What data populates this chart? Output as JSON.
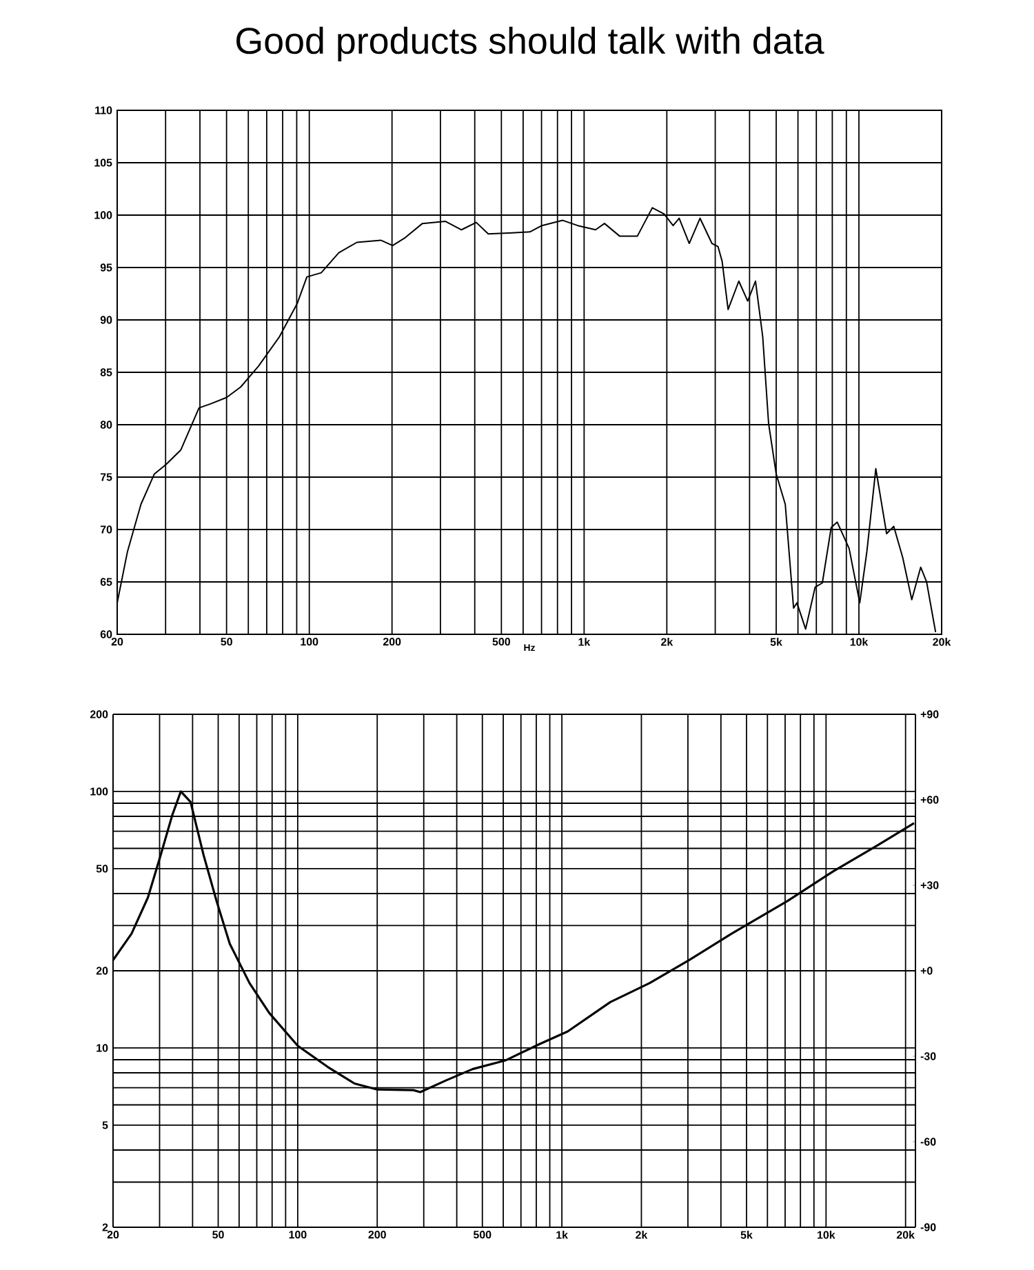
{
  "chart_data": [
    {
      "type": "line",
      "title": "Good products should talk with data",
      "xlabel": "Hz",
      "log": "x",
      "grid": true,
      "xlim": [
        20,
        20000
      ],
      "ylim": [
        60,
        110
      ],
      "xticks": [
        20,
        {
          "value": 30,
          "label": null
        },
        {
          "value": 40,
          "label": null
        },
        50,
        {
          "value": 60,
          "label": null
        },
        {
          "value": 70,
          "label": null
        },
        {
          "value": 80,
          "label": null
        },
        {
          "value": 90,
          "label": null
        },
        100,
        200,
        {
          "value": 300,
          "label": null
        },
        {
          "value": 400,
          "label": null
        },
        500,
        {
          "value": 600,
          "label": null
        },
        {
          "value": 700,
          "label": null
        },
        {
          "value": 800,
          "label": null
        },
        {
          "value": 900,
          "label": null
        },
        {
          "value": 1000,
          "label": "1k"
        },
        {
          "value": 2000,
          "label": "2k"
        },
        {
          "value": 3000,
          "label": null
        },
        {
          "value": 4000,
          "label": null
        },
        {
          "value": 5000,
          "label": "5k"
        },
        {
          "value": 6000,
          "label": null
        },
        {
          "value": 7000,
          "label": null
        },
        {
          "value": 8000,
          "label": null
        },
        {
          "value": 9000,
          "label": null
        },
        {
          "value": 10000,
          "label": "10k"
        },
        {
          "value": 20000,
          "label": "20k"
        }
      ],
      "yticks": [
        60,
        65,
        70,
        75,
        80,
        85,
        90,
        95,
        100,
        105,
        110
      ],
      "series": [
        {
          "color": "#000000",
          "x": [
            20,
            21.8,
            24.4,
            27.3,
            30.1,
            34.1,
            39.7,
            43.8,
            50,
            56.3,
            65.4,
            77.9,
            90.5,
            98,
            110.5,
            128,
            149,
            182,
            201,
            222,
            258,
            313,
            358,
            405,
            448,
            547,
            635,
            702,
            836,
            948,
            1101,
            1186,
            1346,
            1563,
            1771,
            1955,
            2108,
            2218,
            2413,
            2641,
            2918,
            3070,
            3178,
            3342,
            3656,
            3938,
            4204,
            4466,
            4692,
            5000,
            5395,
            5783,
            5950,
            6398,
            6930,
            7360,
            7930,
            8338,
            9210,
            10070,
            10690,
            11520,
            12610,
            13390,
            14440,
            15570,
            16780,
            17630,
            19010
          ],
          "values": [
            63.0,
            67.9,
            72.4,
            75.3,
            76.2,
            77.6,
            81.6,
            82.0,
            82.6,
            83.6,
            85.6,
            88.4,
            91.6,
            94.1,
            94.5,
            96.4,
            97.4,
            97.6,
            97.1,
            97.8,
            99.2,
            99.4,
            98.6,
            99.3,
            98.2,
            98.3,
            98.4,
            99.0,
            99.5,
            99.0,
            98.6,
            99.2,
            98.0,
            98.0,
            100.7,
            100.1,
            99.0,
            99.7,
            97.3,
            99.7,
            97.3,
            97.0,
            95.6,
            91.0,
            93.7,
            91.8,
            93.7,
            88.4,
            80.1,
            75.3,
            72.4,
            62.5,
            63.0,
            60.5,
            64.5,
            64.9,
            70.2,
            70.7,
            68.2,
            63.0,
            67.9,
            75.8,
            69.6,
            70.3,
            67.3,
            63.3,
            66.4,
            65.0,
            60.2
          ]
        }
      ]
    },
    {
      "type": "line",
      "log": "xy",
      "grid": true,
      "xlim": [
        20,
        21800
      ],
      "ylim": [
        2,
        200
      ],
      "y2lim": [
        -90,
        90
      ],
      "xticks": [
        20,
        {
          "value": 30,
          "label": null
        },
        {
          "value": 40,
          "label": null
        },
        50,
        {
          "value": 60,
          "label": null
        },
        {
          "value": 70,
          "label": null
        },
        {
          "value": 80,
          "label": null
        },
        {
          "value": 90,
          "label": null
        },
        100,
        200,
        {
          "value": 300,
          "label": null
        },
        {
          "value": 400,
          "label": null
        },
        500,
        {
          "value": 600,
          "label": null
        },
        {
          "value": 700,
          "label": null
        },
        {
          "value": 800,
          "label": null
        },
        {
          "value": 900,
          "label": null
        },
        {
          "value": 1000,
          "label": "1k"
        },
        {
          "value": 2000,
          "label": "2k"
        },
        {
          "value": 3000,
          "label": null
        },
        {
          "value": 4000,
          "label": null
        },
        {
          "value": 5000,
          "label": "5k"
        },
        {
          "value": 6000,
          "label": null
        },
        {
          "value": 7000,
          "label": null
        },
        {
          "value": 8000,
          "label": null
        },
        {
          "value": 9000,
          "label": null
        },
        {
          "value": 10000,
          "label": "10k"
        },
        {
          "value": 20000,
          "label": "20k"
        }
      ],
      "yticks": [
        2,
        {
          "value": 3,
          "label": null
        },
        {
          "value": 4,
          "label": null
        },
        5,
        {
          "value": 6,
          "label": null
        },
        {
          "value": 7,
          "label": null
        },
        {
          "value": 8,
          "label": null
        },
        {
          "value": 9,
          "label": null
        },
        10,
        20,
        {
          "value": 30,
          "label": null
        },
        {
          "value": 40,
          "label": null
        },
        50,
        {
          "value": 60,
          "label": null
        },
        {
          "value": 70,
          "label": null
        },
        {
          "value": 80,
          "label": null
        },
        {
          "value": 90,
          "label": null
        },
        100,
        200
      ],
      "y2ticks": [
        {
          "value": 90,
          "label": "+90"
        },
        {
          "value": 60,
          "label": "+60"
        },
        {
          "value": 30,
          "label": "+30"
        },
        {
          "value": 0,
          "label": "+0"
        },
        -30,
        -60,
        -90
      ],
      "series": [
        {
          "color": "#000000",
          "x": [
            20,
            23.5,
            27.1,
            30.3,
            33.5,
            36.1,
            39.3,
            44.0,
            49.3,
            55.3,
            65.7,
            78,
            100,
            130,
            164,
            200,
            274,
            291,
            365,
            459,
            611,
            813,
            1052,
            1526,
            2148,
            3028,
            4392,
            7140,
            10660,
            15030,
            21540
          ],
          "values": [
            22.0,
            27.9,
            38.6,
            56.6,
            80.8,
            100,
            91,
            56.6,
            37.4,
            25.5,
            17.9,
            13.7,
            10.2,
            8.43,
            7.27,
            6.89,
            6.85,
            6.73,
            7.48,
            8.27,
            8.94,
            10.3,
            11.6,
            15.1,
            17.9,
            22.0,
            27.9,
            37.4,
            48.9,
            60.1,
            75.3
          ]
        }
      ]
    }
  ]
}
